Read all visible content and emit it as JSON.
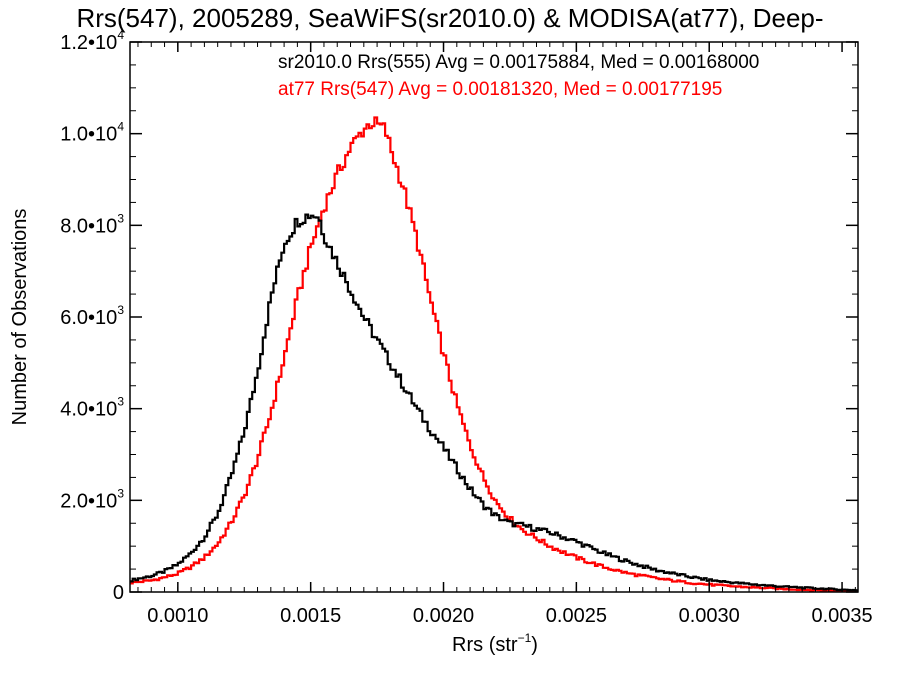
{
  "chart_data": {
    "type": "line",
    "title": "Rrs(547), 2005289, SeaWiFS(sr2010.0) & MODISA(at77), Deep-",
    "xlabel": "Rrs (str",
    "xlabel_exp": "−1",
    "xlabel_close": ")",
    "ylabel": "Number of Observations",
    "xlim": [
      0.00082,
      0.00356
    ],
    "ylim": [
      0,
      12000
    ],
    "grid": false,
    "legend_placement": "top-right",
    "x_ticks": [
      {
        "value": 0.001,
        "label": "0.0010"
      },
      {
        "value": 0.0015,
        "label": "0.0015"
      },
      {
        "value": 0.002,
        "label": "0.0020"
      },
      {
        "value": 0.0025,
        "label": "0.0025"
      },
      {
        "value": 0.003,
        "label": "0.0030"
      },
      {
        "value": 0.0035,
        "label": "0.0035"
      }
    ],
    "y_ticks": [
      {
        "value": 0,
        "mantissa": "0",
        "exp": ""
      },
      {
        "value": 2000,
        "mantissa": "2.0•10",
        "exp": "3"
      },
      {
        "value": 4000,
        "mantissa": "4.0•10",
        "exp": "3"
      },
      {
        "value": 6000,
        "mantissa": "6.0•10",
        "exp": "3"
      },
      {
        "value": 8000,
        "mantissa": "8.0•10",
        "exp": "3"
      },
      {
        "value": 10000,
        "mantissa": "1.0•10",
        "exp": "4"
      },
      {
        "value": 12000,
        "mantissa": "1.2•10",
        "exp": "4"
      }
    ],
    "series": [
      {
        "label": "sr2010.0 Rrs(555) Avg = 0.00175884, Med = 0.00168000",
        "color": "#000000",
        "x": [
          0.00082,
          0.0009,
          0.00095,
          0.001,
          0.00105,
          0.0011,
          0.00115,
          0.0012,
          0.00125,
          0.0013,
          0.00135,
          0.0014,
          0.00145,
          0.0015,
          0.00153,
          0.00155,
          0.0016,
          0.00165,
          0.0017,
          0.00175,
          0.0018,
          0.00185,
          0.0019,
          0.00195,
          0.002,
          0.00205,
          0.0021,
          0.00215,
          0.0022,
          0.00225,
          0.0023,
          0.0024,
          0.0025,
          0.0026,
          0.0027,
          0.0028,
          0.0029,
          0.003,
          0.0031,
          0.0032,
          0.0033,
          0.0034,
          0.0035,
          0.00356
        ],
        "y": [
          250,
          350,
          450,
          600,
          850,
          1200,
          1700,
          2500,
          3500,
          4800,
          6400,
          7600,
          8100,
          8250,
          8200,
          7800,
          7200,
          6600,
          6000,
          5500,
          5000,
          4500,
          4000,
          3550,
          3150,
          2700,
          2250,
          1900,
          1650,
          1500,
          1450,
          1300,
          1100,
          850,
          650,
          480,
          360,
          260,
          200,
          150,
          110,
          80,
          50,
          40
        ]
      },
      {
        "label": "at77 Rrs(547) Avg = 0.00181320, Med = 0.00177195",
        "color": "#ff0000",
        "x": [
          0.00082,
          0.0009,
          0.00095,
          0.001,
          0.00105,
          0.0011,
          0.00115,
          0.0012,
          0.00125,
          0.0013,
          0.00135,
          0.0014,
          0.00145,
          0.0015,
          0.00155,
          0.0016,
          0.00165,
          0.0017,
          0.00173,
          0.00175,
          0.00178,
          0.0018,
          0.00185,
          0.0019,
          0.00195,
          0.002,
          0.00205,
          0.0021,
          0.00215,
          0.0022,
          0.00225,
          0.0023,
          0.0024,
          0.0025,
          0.0026,
          0.0027,
          0.0028,
          0.0029,
          0.003,
          0.0031,
          0.0032,
          0.0033,
          0.0034,
          0.0035,
          0.00356
        ],
        "y": [
          200,
          250,
          320,
          400,
          550,
          750,
          1050,
          1500,
          2100,
          2900,
          3900,
          5100,
          6400,
          7500,
          8400,
          9100,
          9700,
          10100,
          10250,
          10200,
          10100,
          9700,
          8800,
          7700,
          6400,
          5200,
          4100,
          3200,
          2500,
          1950,
          1600,
          1350,
          1000,
          750,
          550,
          400,
          300,
          220,
          160,
          120,
          90,
          60,
          40,
          30,
          25
        ]
      }
    ]
  }
}
